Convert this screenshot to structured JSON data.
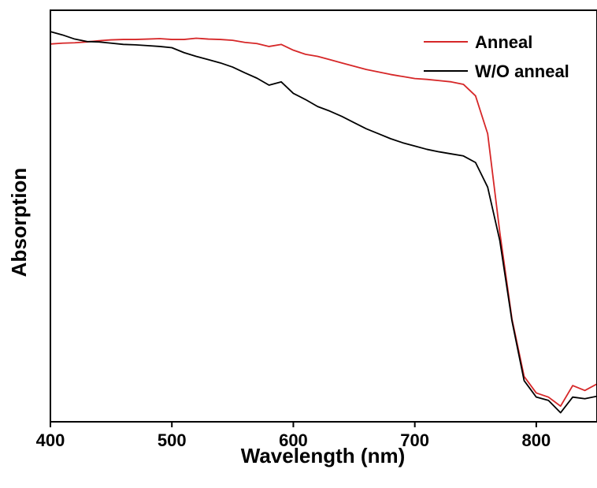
{
  "chart_data": {
    "type": "line",
    "xlabel": "Wavelength (nm)",
    "ylabel": "Absorption",
    "xlim": [
      400,
      850
    ],
    "ylim": [
      0,
      1
    ],
    "xticks": [
      400,
      500,
      600,
      700,
      800
    ],
    "yticks_visible": false,
    "grid": false,
    "legend_position": "top-right",
    "series": [
      {
        "name": "Anneal",
        "color": "#d62728",
        "x": [
          400,
          410,
          420,
          430,
          440,
          450,
          460,
          470,
          480,
          490,
          500,
          510,
          520,
          530,
          540,
          550,
          560,
          570,
          580,
          590,
          600,
          610,
          620,
          630,
          640,
          650,
          660,
          670,
          680,
          690,
          700,
          710,
          720,
          730,
          740,
          750,
          760,
          770,
          780,
          790,
          800,
          810,
          820,
          830,
          840,
          850
        ],
        "y": [
          0.918,
          0.92,
          0.921,
          0.923,
          0.926,
          0.928,
          0.929,
          0.929,
          0.93,
          0.931,
          0.929,
          0.929,
          0.932,
          0.93,
          0.929,
          0.927,
          0.922,
          0.919,
          0.912,
          0.917,
          0.903,
          0.893,
          0.888,
          0.88,
          0.872,
          0.864,
          0.856,
          0.85,
          0.844,
          0.839,
          0.834,
          0.832,
          0.829,
          0.826,
          0.82,
          0.792,
          0.7,
          0.46,
          0.25,
          0.11,
          0.07,
          0.06,
          0.038,
          0.088,
          0.076,
          0.092
        ]
      },
      {
        "name": "W/O anneal",
        "color": "#000000",
        "x": [
          400,
          410,
          420,
          430,
          440,
          450,
          460,
          470,
          480,
          490,
          500,
          510,
          520,
          530,
          540,
          550,
          560,
          570,
          580,
          590,
          600,
          610,
          620,
          630,
          640,
          650,
          660,
          670,
          680,
          690,
          700,
          710,
          720,
          730,
          740,
          750,
          760,
          770,
          780,
          790,
          800,
          810,
          820,
          830,
          840,
          850
        ],
        "y": [
          0.948,
          0.94,
          0.93,
          0.924,
          0.923,
          0.92,
          0.917,
          0.916,
          0.914,
          0.912,
          0.909,
          0.897,
          0.888,
          0.88,
          0.872,
          0.862,
          0.848,
          0.835,
          0.818,
          0.826,
          0.798,
          0.783,
          0.766,
          0.755,
          0.742,
          0.727,
          0.712,
          0.7,
          0.688,
          0.678,
          0.67,
          0.662,
          0.656,
          0.651,
          0.646,
          0.63,
          0.57,
          0.44,
          0.245,
          0.1,
          0.06,
          0.052,
          0.022,
          0.06,
          0.056,
          0.062
        ]
      }
    ]
  }
}
